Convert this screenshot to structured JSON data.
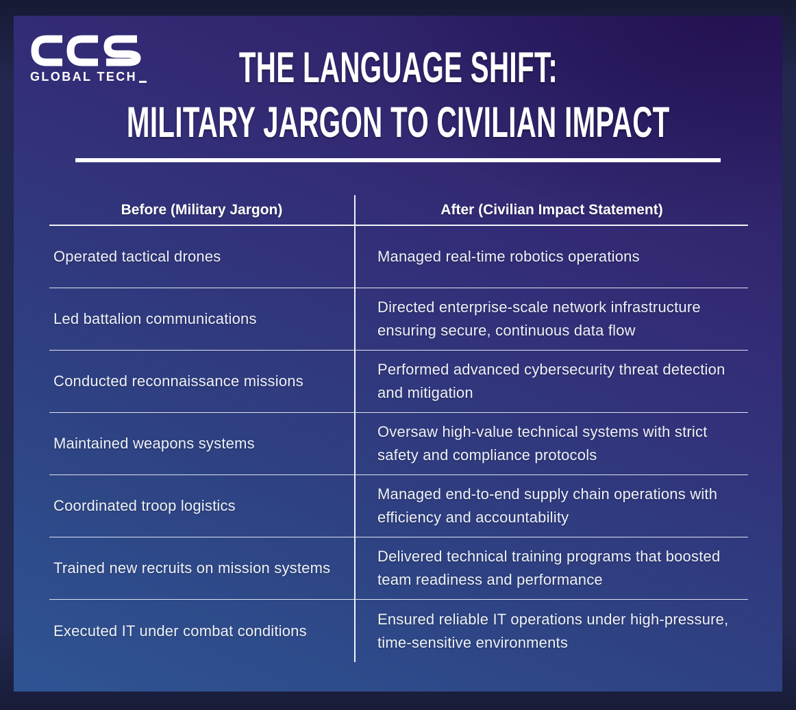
{
  "logo": {
    "brand": "CCS",
    "tagline": "GLOBAL TECH"
  },
  "header": {
    "title_line1": "THE LANGUAGE SHIFT:",
    "title_line2": "MILITARY JARGON TO CIVILIAN IMPACT"
  },
  "table": {
    "columns": [
      "Before (Military Jargon)",
      "After (Civilian Impact Statement)"
    ],
    "rows": [
      {
        "before": "Operated tactical drones",
        "after": "Managed real-time robotics operations"
      },
      {
        "before": "Led battalion communications",
        "after": "Directed enterprise-scale network infrastructure ensuring secure, continuous data flow"
      },
      {
        "before": "Conducted reconnaissance missions",
        "after": "Performed advanced cybersecurity threat detection and mitigation"
      },
      {
        "before": "Maintained weapons systems",
        "after": "Oversaw high-value technical systems with strict safety and compliance protocols"
      },
      {
        "before": "Coordinated troop logistics",
        "after": "Managed end-to-end supply chain operations with efficiency and accountability"
      },
      {
        "before": "Trained new recruits on mission systems",
        "after": "Delivered technical training programs that boosted team readiness and performance"
      },
      {
        "before": "Executed IT under combat conditions",
        "after": "Ensured reliable IT operations under high-pressure, time-sensitive environments"
      }
    ]
  },
  "colors": {
    "frame_outer": "#222850",
    "panel_top_purple": "#2d1c61",
    "panel_bottom_blue": "#2f5493",
    "text": "#eef1f7",
    "lines": "#ffffff"
  }
}
